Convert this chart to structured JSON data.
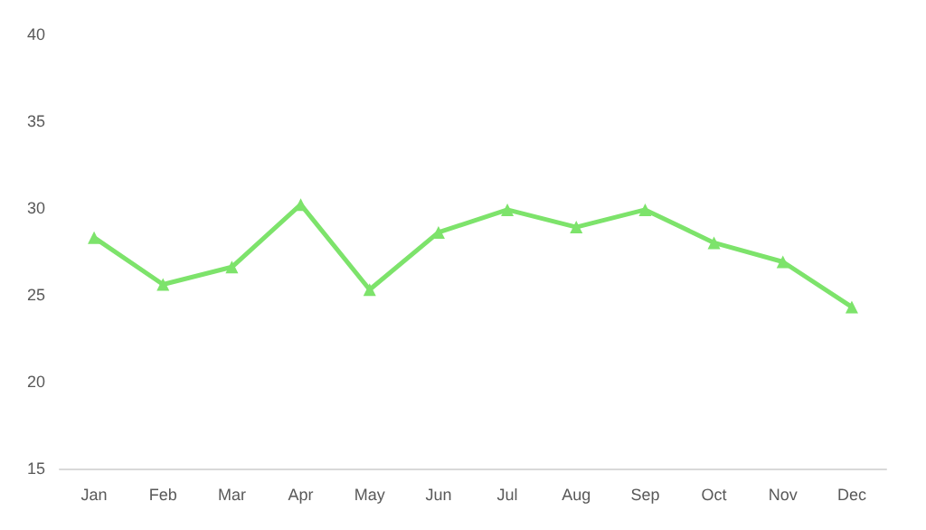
{
  "chart_data": {
    "type": "line",
    "categories": [
      "Jan",
      "Feb",
      "Mar",
      "Apr",
      "May",
      "Jun",
      "Jul",
      "Aug",
      "Sep",
      "Oct",
      "Nov",
      "Dec"
    ],
    "series": [
      {
        "color": "#7de36b",
        "values": [
          28.3,
          25.6,
          26.6,
          30.2,
          25.3,
          28.6,
          29.9,
          28.9,
          29.9,
          28.0,
          26.9,
          24.3
        ]
      }
    ],
    "ylim": [
      15,
      40
    ],
    "yticks": [
      15,
      20,
      25,
      30,
      35,
      40
    ],
    "grid": false,
    "marker": "triangle",
    "line_style": "solid"
  }
}
